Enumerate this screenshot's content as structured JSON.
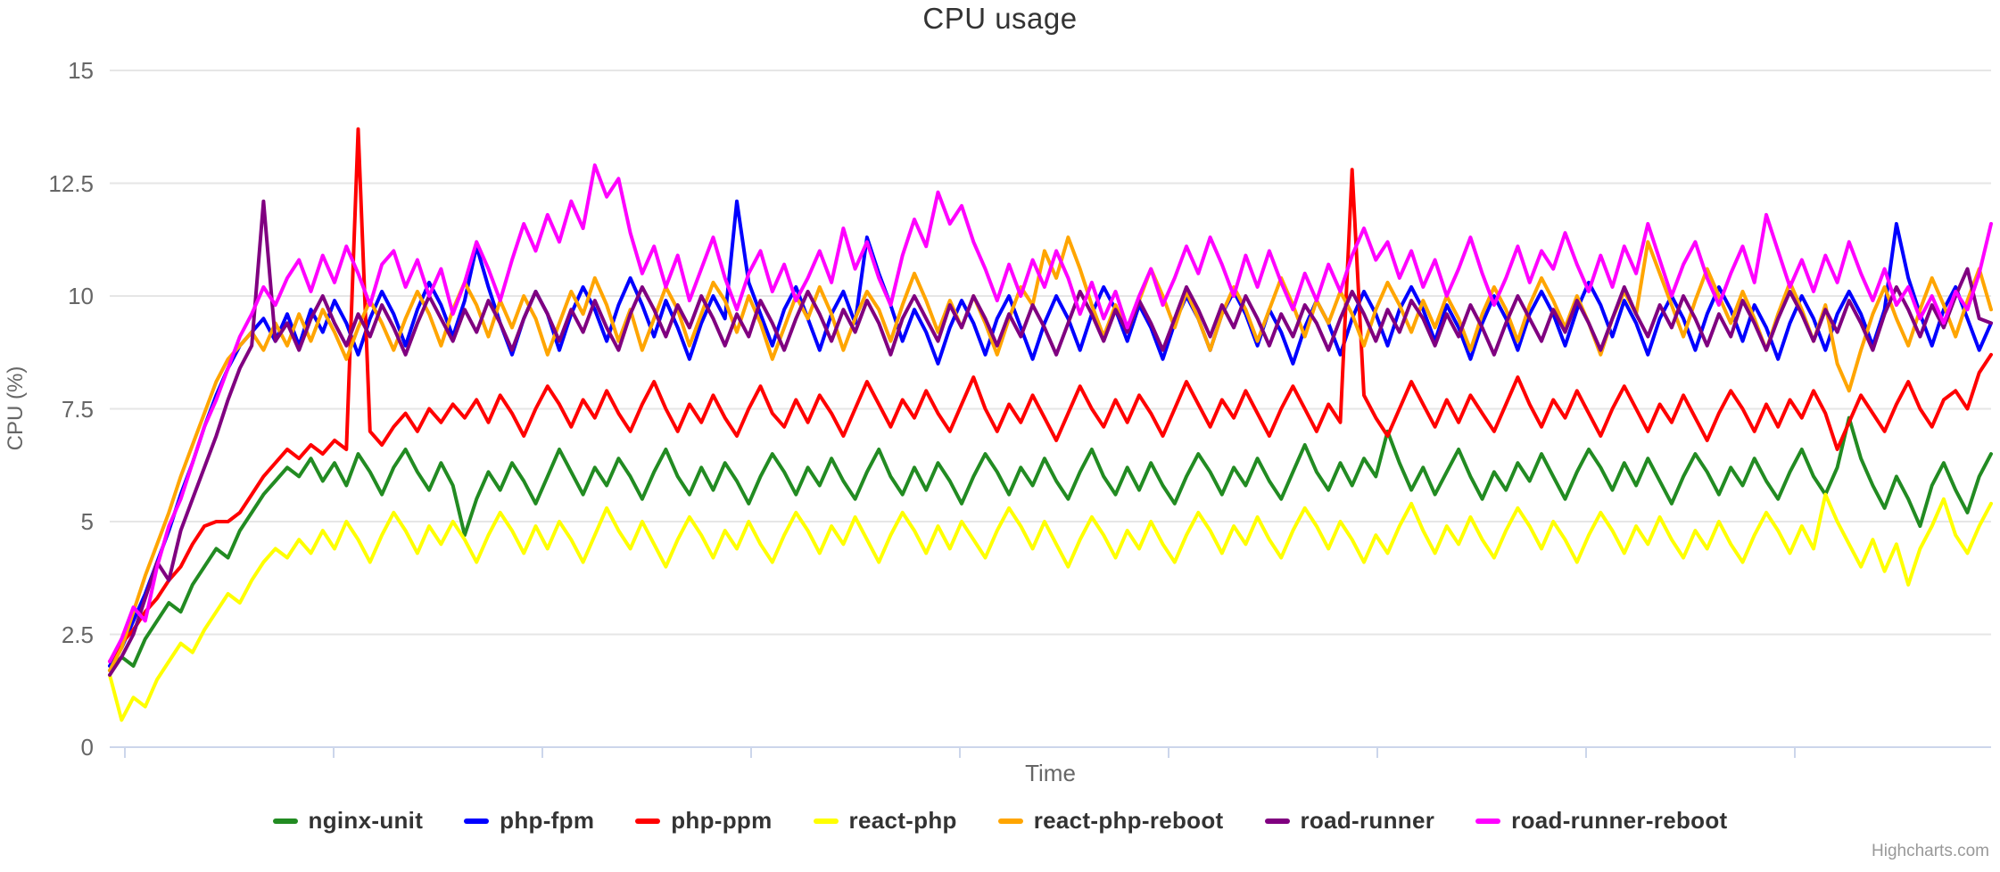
{
  "chart_data": {
    "type": "line",
    "title": "CPU usage",
    "xlabel": "Time",
    "ylabel": "CPU (%)",
    "ylim": [
      0,
      15
    ],
    "yticks": [
      0,
      2.5,
      5,
      7.5,
      10,
      12.5,
      15
    ],
    "ytick_labels": [
      "0",
      "2.5",
      "5",
      "7.5",
      "10",
      "12.5",
      "15"
    ],
    "xtick_labels": [],
    "grid": "horizontal",
    "legend_position": "bottom",
    "grid_color": "#e6e6e6",
    "axis_line_color": "#ccd6eb",
    "credits": "Highcharts.com",
    "series": [
      {
        "name": "nginx-unit",
        "color": "#228B22",
        "values": [
          1.7,
          2.0,
          1.8,
          2.4,
          2.8,
          3.2,
          3.0,
          3.6,
          4.0,
          4.4,
          4.2,
          4.8,
          5.2,
          5.6,
          5.9,
          6.2,
          6.0,
          6.4,
          5.9,
          6.3,
          5.8,
          6.5,
          6.1,
          5.6,
          6.2,
          6.6,
          6.1,
          5.7,
          6.3,
          5.8,
          4.7,
          5.5,
          6.1,
          5.7,
          6.3,
          5.9,
          5.4,
          6.0,
          6.6,
          6.1,
          5.6,
          6.2,
          5.8,
          6.4,
          6.0,
          5.5,
          6.1,
          6.6,
          6.0,
          5.6,
          6.2,
          5.7,
          6.3,
          5.9,
          5.4,
          6.0,
          6.5,
          6.1,
          5.6,
          6.2,
          5.8,
          6.4,
          5.9,
          5.5,
          6.1,
          6.6,
          6.0,
          5.6,
          6.2,
          5.7,
          6.3,
          5.9,
          5.4,
          6.0,
          6.5,
          6.1,
          5.6,
          6.2,
          5.8,
          6.4,
          5.9,
          5.5,
          6.1,
          6.6,
          6.0,
          5.6,
          6.2,
          5.7,
          6.3,
          5.8,
          5.4,
          6.0,
          6.5,
          6.1,
          5.6,
          6.2,
          5.8,
          6.4,
          5.9,
          5.5,
          6.1,
          6.7,
          6.1,
          5.7,
          6.3,
          5.8,
          6.4,
          6.0,
          7.0,
          6.3,
          5.7,
          6.2,
          5.6,
          6.1,
          6.6,
          6.0,
          5.5,
          6.1,
          5.7,
          6.3,
          5.9,
          6.5,
          6.0,
          5.5,
          6.1,
          6.6,
          6.2,
          5.7,
          6.3,
          5.8,
          6.4,
          5.9,
          5.4,
          6.0,
          6.5,
          6.1,
          5.6,
          6.2,
          5.8,
          6.4,
          5.9,
          5.5,
          6.1,
          6.6,
          6.0,
          5.6,
          6.2,
          7.3,
          6.4,
          5.8,
          5.3,
          6.0,
          5.5,
          4.9,
          5.8,
          6.3,
          5.7,
          5.2,
          6.0,
          6.5
        ]
      },
      {
        "name": "php-fpm",
        "color": "#0000FF",
        "values": [
          1.8,
          2.2,
          2.8,
          3.4,
          4.1,
          4.8,
          5.6,
          6.3,
          7.1,
          7.8,
          8.4,
          8.9,
          9.2,
          9.5,
          9.0,
          9.6,
          8.9,
          9.7,
          9.2,
          9.9,
          9.4,
          8.7,
          9.5,
          10.1,
          9.6,
          8.9,
          9.7,
          10.3,
          9.8,
          9.1,
          9.9,
          11.1,
          10.2,
          9.4,
          8.7,
          9.5,
          10.1,
          9.6,
          8.8,
          9.6,
          10.2,
          9.7,
          9.0,
          9.8,
          10.4,
          9.8,
          9.1,
          9.9,
          9.3,
          8.6,
          9.4,
          10.0,
          9.5,
          12.1,
          10.3,
          9.6,
          8.9,
          9.7,
          10.2,
          9.5,
          8.8,
          9.6,
          10.1,
          9.4,
          11.3,
          10.5,
          9.8,
          9.0,
          9.7,
          9.2,
          8.5,
          9.3,
          9.9,
          9.4,
          8.7,
          9.5,
          10.0,
          9.3,
          8.6,
          9.4,
          10.0,
          9.5,
          8.8,
          9.6,
          10.2,
          9.7,
          9.0,
          9.8,
          9.3,
          8.6,
          9.4,
          10.0,
          9.5,
          8.8,
          9.6,
          10.1,
          9.6,
          8.9,
          9.7,
          9.2,
          8.5,
          9.3,
          9.9,
          9.4,
          8.7,
          9.5,
          10.1,
          9.6,
          8.9,
          9.7,
          10.2,
          9.7,
          9.0,
          9.8,
          9.3,
          8.6,
          9.4,
          10.0,
          9.5,
          8.8,
          9.6,
          10.1,
          9.6,
          8.9,
          9.7,
          10.3,
          9.8,
          9.1,
          9.9,
          9.4,
          8.7,
          9.5,
          10.0,
          9.5,
          8.8,
          9.6,
          10.2,
          9.7,
          9.0,
          9.8,
          9.3,
          8.6,
          9.4,
          10.0,
          9.5,
          8.8,
          9.6,
          10.1,
          9.6,
          8.9,
          9.7,
          11.6,
          10.4,
          9.6,
          8.9,
          9.7,
          10.2,
          9.5,
          8.8,
          9.4
        ]
      },
      {
        "name": "php-ppm",
        "color": "#FF0000",
        "values": [
          1.9,
          2.3,
          2.6,
          3.0,
          3.3,
          3.7,
          4.0,
          4.5,
          4.9,
          5.0,
          5.0,
          5.2,
          5.6,
          6.0,
          6.3,
          6.6,
          6.4,
          6.7,
          6.5,
          6.8,
          6.6,
          13.7,
          7.0,
          6.7,
          7.1,
          7.4,
          7.0,
          7.5,
          7.2,
          7.6,
          7.3,
          7.7,
          7.2,
          7.8,
          7.4,
          6.9,
          7.5,
          8.0,
          7.6,
          7.1,
          7.7,
          7.3,
          7.9,
          7.4,
          7.0,
          7.6,
          8.1,
          7.5,
          7.0,
          7.6,
          7.2,
          7.8,
          7.3,
          6.9,
          7.5,
          8.0,
          7.4,
          7.1,
          7.7,
          7.2,
          7.8,
          7.4,
          6.9,
          7.5,
          8.1,
          7.6,
          7.1,
          7.7,
          7.3,
          7.9,
          7.4,
          7.0,
          7.6,
          8.2,
          7.5,
          7.0,
          7.6,
          7.2,
          7.8,
          7.3,
          6.8,
          7.4,
          8.0,
          7.5,
          7.1,
          7.7,
          7.2,
          7.8,
          7.4,
          6.9,
          7.5,
          8.1,
          7.6,
          7.1,
          7.7,
          7.3,
          7.9,
          7.4,
          6.9,
          7.5,
          8.0,
          7.5,
          7.0,
          7.6,
          7.2,
          12.8,
          7.8,
          7.3,
          6.9,
          7.5,
          8.1,
          7.6,
          7.1,
          7.7,
          7.2,
          7.8,
          7.4,
          7.0,
          7.6,
          8.2,
          7.6,
          7.1,
          7.7,
          7.3,
          7.9,
          7.4,
          6.9,
          7.5,
          8.0,
          7.5,
          7.0,
          7.6,
          7.2,
          7.8,
          7.3,
          6.8,
          7.4,
          7.9,
          7.5,
          7.0,
          7.6,
          7.1,
          7.7,
          7.3,
          7.9,
          7.4,
          6.6,
          7.2,
          7.8,
          7.4,
          7.0,
          7.6,
          8.1,
          7.5,
          7.1,
          7.7,
          7.9,
          7.5,
          8.3,
          8.7
        ]
      },
      {
        "name": "react-php",
        "color": "#FFFF00",
        "values": [
          1.6,
          0.6,
          1.1,
          0.9,
          1.5,
          1.9,
          2.3,
          2.1,
          2.6,
          3.0,
          3.4,
          3.2,
          3.7,
          4.1,
          4.4,
          4.2,
          4.6,
          4.3,
          4.8,
          4.4,
          5.0,
          4.6,
          4.1,
          4.7,
          5.2,
          4.8,
          4.3,
          4.9,
          4.5,
          5.0,
          4.6,
          4.1,
          4.7,
          5.2,
          4.8,
          4.3,
          4.9,
          4.4,
          5.0,
          4.6,
          4.1,
          4.7,
          5.3,
          4.8,
          4.4,
          5.0,
          4.5,
          4.0,
          4.6,
          5.1,
          4.7,
          4.2,
          4.8,
          4.4,
          5.0,
          4.5,
          4.1,
          4.7,
          5.2,
          4.8,
          4.3,
          4.9,
          4.5,
          5.1,
          4.6,
          4.1,
          4.7,
          5.2,
          4.8,
          4.3,
          4.9,
          4.4,
          5.0,
          4.6,
          4.2,
          4.8,
          5.3,
          4.9,
          4.4,
          5.0,
          4.5,
          4.0,
          4.6,
          5.1,
          4.7,
          4.2,
          4.8,
          4.4,
          5.0,
          4.5,
          4.1,
          4.7,
          5.2,
          4.8,
          4.3,
          4.9,
          4.5,
          5.1,
          4.6,
          4.2,
          4.8,
          5.3,
          4.9,
          4.4,
          5.0,
          4.6,
          4.1,
          4.7,
          4.3,
          4.9,
          5.4,
          4.8,
          4.3,
          4.9,
          4.5,
          5.1,
          4.6,
          4.2,
          4.8,
          5.3,
          4.9,
          4.4,
          5.0,
          4.6,
          4.1,
          4.7,
          5.2,
          4.8,
          4.3,
          4.9,
          4.5,
          5.1,
          4.6,
          4.2,
          4.8,
          4.4,
          5.0,
          4.5,
          4.1,
          4.7,
          5.2,
          4.8,
          4.3,
          4.9,
          4.4,
          5.6,
          5.0,
          4.5,
          4.0,
          4.6,
          3.9,
          4.5,
          3.6,
          4.4,
          4.9,
          5.5,
          4.7,
          4.3,
          4.9,
          5.4
        ]
      },
      {
        "name": "react-php-reboot",
        "color": "#FFA500",
        "values": [
          1.7,
          2.2,
          3.0,
          3.8,
          4.5,
          5.2,
          6.0,
          6.7,
          7.4,
          8.1,
          8.6,
          8.9,
          9.2,
          8.8,
          9.4,
          8.9,
          9.6,
          9.0,
          9.7,
          9.2,
          8.6,
          9.3,
          9.9,
          9.4,
          8.8,
          9.5,
          10.1,
          9.6,
          8.9,
          9.7,
          10.3,
          9.8,
          9.1,
          9.9,
          9.3,
          10.0,
          9.5,
          8.7,
          9.4,
          10.1,
          9.6,
          10.4,
          9.8,
          9.0,
          9.7,
          8.8,
          9.5,
          10.2,
          9.7,
          8.9,
          9.6,
          10.3,
          9.9,
          9.2,
          10.0,
          9.4,
          8.6,
          9.3,
          10.0,
          9.5,
          10.2,
          9.6,
          8.8,
          9.5,
          10.1,
          9.7,
          9.0,
          9.8,
          10.5,
          9.9,
          9.2,
          9.9,
          9.3,
          10.0,
          9.4,
          8.7,
          9.5,
          10.2,
          9.8,
          11.0,
          10.4,
          11.3,
          10.6,
          9.8,
          9.1,
          9.8,
          9.2,
          9.9,
          10.6,
          10.0,
          9.3,
          10.1,
          9.5,
          8.8,
          9.6,
          10.2,
          9.7,
          9.0,
          9.7,
          10.4,
          9.8,
          9.1,
          9.9,
          9.4,
          10.1,
          9.6,
          8.9,
          9.7,
          10.3,
          9.8,
          9.2,
          9.9,
          9.3,
          10.0,
          9.5,
          8.8,
          9.6,
          10.2,
          9.7,
          9.0,
          9.8,
          10.4,
          9.9,
          9.3,
          10.0,
          9.4,
          8.7,
          9.5,
          10.1,
          9.6,
          11.2,
          10.5,
          9.8,
          9.1,
          9.9,
          10.6,
          10.0,
          9.4,
          10.1,
          9.5,
          8.8,
          9.6,
          10.3,
          9.7,
          9.0,
          9.8,
          8.5,
          7.9,
          8.8,
          9.6,
          10.2,
          9.5,
          8.9,
          9.7,
          10.4,
          9.8,
          9.1,
          9.9,
          10.6,
          9.7
        ]
      },
      {
        "name": "road-runner",
        "color": "#800080",
        "values": [
          1.6,
          2.0,
          2.5,
          3.3,
          4.1,
          3.7,
          4.8,
          5.5,
          6.2,
          6.9,
          7.7,
          8.4,
          8.9,
          12.1,
          9.0,
          9.4,
          8.8,
          9.5,
          10.0,
          9.4,
          8.9,
          9.6,
          9.1,
          9.8,
          9.3,
          8.7,
          9.4,
          10.0,
          9.5,
          9.0,
          9.7,
          9.2,
          9.9,
          9.4,
          8.8,
          9.5,
          10.1,
          9.6,
          9.0,
          9.7,
          9.2,
          9.9,
          9.3,
          8.8,
          9.6,
          10.2,
          9.7,
          9.1,
          9.8,
          9.3,
          10.0,
          9.5,
          8.9,
          9.6,
          9.1,
          9.9,
          9.4,
          8.8,
          9.5,
          10.1,
          9.6,
          9.0,
          9.7,
          9.2,
          9.9,
          9.4,
          8.7,
          9.5,
          10.0,
          9.5,
          9.0,
          9.8,
          9.3,
          10.0,
          9.5,
          8.9,
          9.6,
          9.1,
          9.8,
          9.3,
          8.7,
          9.4,
          10.1,
          9.6,
          9.0,
          9.7,
          9.2,
          9.9,
          9.4,
          8.8,
          9.5,
          10.2,
          9.7,
          9.1,
          9.8,
          9.3,
          10.0,
          9.5,
          8.9,
          9.6,
          9.1,
          9.8,
          9.4,
          8.8,
          9.5,
          10.1,
          9.6,
          9.0,
          9.7,
          9.2,
          9.9,
          9.5,
          8.9,
          9.6,
          9.1,
          9.8,
          9.3,
          8.7,
          9.4,
          10.0,
          9.5,
          9.0,
          9.7,
          9.2,
          9.9,
          9.4,
          8.8,
          9.5,
          10.2,
          9.6,
          9.1,
          9.8,
          9.3,
          10.0,
          9.5,
          8.9,
          9.6,
          9.1,
          9.9,
          9.4,
          8.8,
          9.5,
          10.1,
          9.6,
          9.0,
          9.7,
          9.2,
          9.9,
          9.4,
          8.8,
          9.6,
          10.2,
          9.7,
          9.1,
          9.8,
          9.3,
          10.0,
          10.6,
          9.5,
          9.4
        ]
      },
      {
        "name": "road-runner-reboot",
        "color": "#FF00FF",
        "values": [
          1.9,
          2.4,
          3.1,
          2.8,
          4.0,
          4.9,
          5.5,
          6.3,
          7.1,
          7.7,
          8.4,
          9.1,
          9.6,
          10.2,
          9.8,
          10.4,
          10.8,
          10.1,
          10.9,
          10.3,
          11.1,
          10.5,
          9.8,
          10.7,
          11.0,
          10.2,
          10.8,
          10.0,
          10.6,
          9.6,
          10.3,
          11.2,
          10.6,
          9.9,
          10.8,
          11.6,
          11.0,
          11.8,
          11.2,
          12.1,
          11.5,
          12.9,
          12.2,
          12.6,
          11.4,
          10.5,
          11.1,
          10.2,
          10.9,
          9.9,
          10.6,
          11.3,
          10.4,
          9.7,
          10.5,
          11.0,
          10.1,
          10.7,
          9.9,
          10.4,
          11.0,
          10.3,
          11.5,
          10.6,
          11.2,
          10.4,
          9.8,
          10.9,
          11.7,
          11.1,
          12.3,
          11.6,
          12.0,
          11.2,
          10.6,
          9.9,
          10.7,
          10.0,
          10.8,
          10.2,
          11.0,
          10.4,
          9.6,
          10.3,
          9.5,
          10.1,
          9.3,
          10.0,
          10.6,
          9.8,
          10.4,
          11.1,
          10.5,
          11.3,
          10.7,
          10.0,
          10.9,
          10.2,
          11.0,
          10.3,
          9.7,
          10.5,
          9.9,
          10.7,
          10.1,
          10.9,
          11.5,
          10.8,
          11.2,
          10.4,
          11.0,
          10.2,
          10.8,
          10.0,
          10.6,
          11.3,
          10.5,
          9.8,
          10.4,
          11.1,
          10.3,
          11.0,
          10.6,
          11.4,
          10.7,
          10.1,
          10.9,
          10.2,
          11.1,
          10.5,
          11.6,
          10.8,
          10.0,
          10.7,
          11.2,
          10.4,
          9.8,
          10.5,
          11.1,
          10.3,
          11.8,
          11.0,
          10.2,
          10.8,
          10.1,
          10.9,
          10.3,
          11.2,
          10.5,
          9.9,
          10.6,
          9.8,
          10.2,
          9.5,
          10.0,
          9.4,
          10.1,
          9.7,
          10.5,
          11.6
        ]
      }
    ]
  }
}
